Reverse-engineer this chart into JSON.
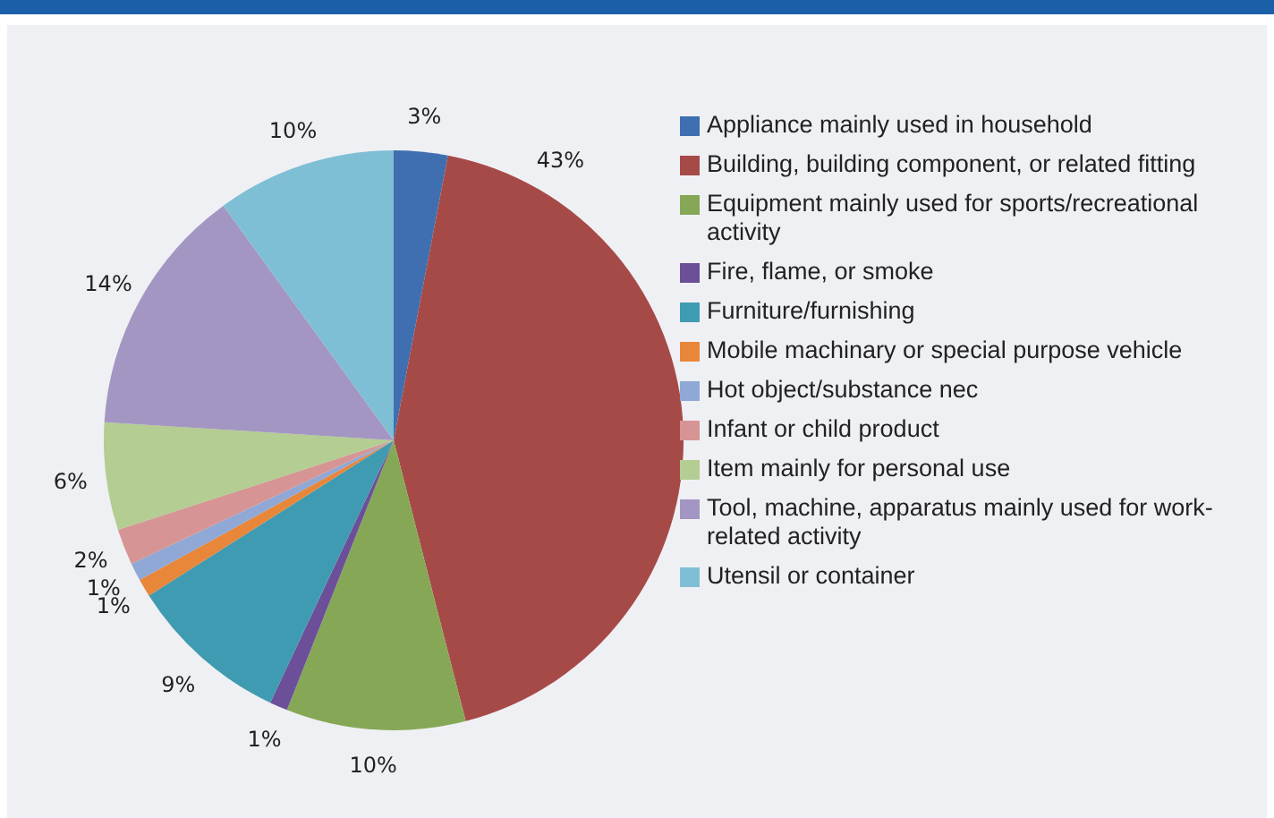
{
  "chart_data": {
    "type": "pie",
    "categories": [
      "Appliance mainly used in household",
      "Building, building component, or related fitting",
      "Equipment mainly used for sports/recreational activity",
      "Fire, flame, or smoke",
      "Furniture/furnishing",
      "Mobile machinary or special purpose vehicle",
      "Hot object/substance nec",
      "Infant or child product",
      "Item mainly for personal use",
      "Tool, machine, apparatus mainly used for work-related activity",
      "Utensil or container"
    ],
    "values": [
      3,
      43,
      10,
      1,
      9,
      1,
      1,
      2,
      6,
      14,
      10
    ],
    "colors": [
      "#3f6fb0",
      "#a64a48",
      "#86a856",
      "#6b4f99",
      "#3f9bb1",
      "#e8863a",
      "#8fa8d6",
      "#d69594",
      "#b3cd92",
      "#a496c2",
      "#7fbfd6"
    ],
    "value_labels": [
      "3%",
      "43%",
      "10%",
      "1%",
      "9%",
      "1%",
      "1%",
      "2%",
      "6%",
      "14%",
      "10%"
    ],
    "legend": "right"
  }
}
